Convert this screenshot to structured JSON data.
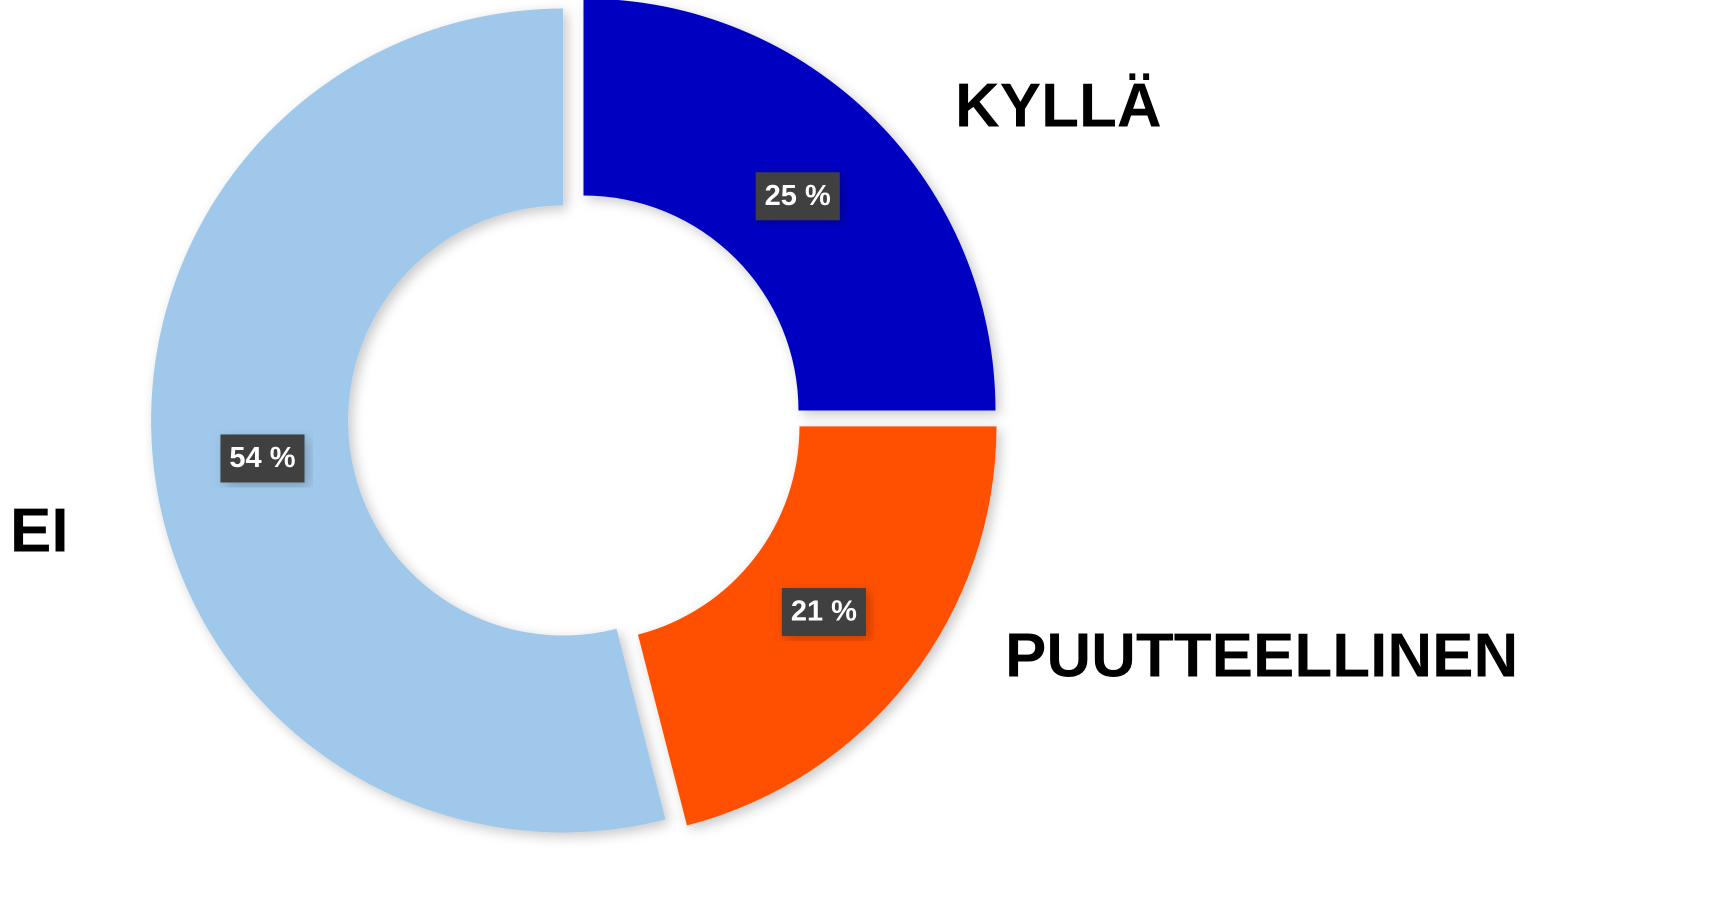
{
  "chart_data": {
    "type": "donut",
    "categories": [
      "KYLLÄ",
      "PUUTTEELLINEN",
      "EI"
    ],
    "values": [
      25,
      21,
      54
    ],
    "value_labels": [
      "25 %",
      "21 %",
      "54 %"
    ],
    "colors": [
      "#0000c0",
      "#ff5000",
      "#a0c8ea"
    ]
  }
}
